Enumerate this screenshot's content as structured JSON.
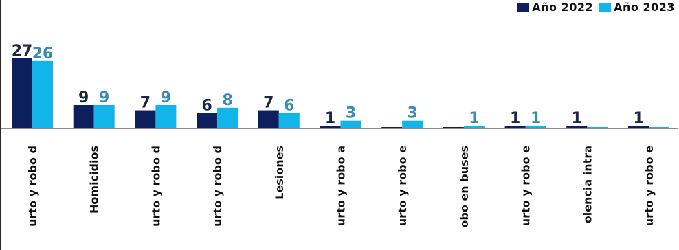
{
  "chart_data": {
    "type": "bar",
    "title": "",
    "xlabel": "",
    "ylabel": "",
    "ylim": [
      0,
      27
    ],
    "grid": false,
    "legend_position": "top-right",
    "categories": [
      "urto y robo d",
      "Homicidios",
      "urto y robo d",
      "urto y robo d",
      "Lesiones",
      "urto y robo a",
      "urto y robo e",
      "obo en buses",
      "urto y robo e",
      "olencia intra",
      "urto y robo e"
    ],
    "series": [
      {
        "name": "Año 2022",
        "color": "#0d1f5c",
        "label_color": "#1c2541",
        "values": [
          27,
          9,
          7,
          6,
          7,
          1,
          0,
          0,
          1,
          1,
          1
        ],
        "labels": [
          "27",
          "9",
          "7",
          "6",
          "7",
          "1",
          "",
          "",
          "1",
          "1",
          "1"
        ]
      },
      {
        "name": "Año 2023",
        "color": "#11b5ea",
        "label_color": "#3a8ab6",
        "values": [
          26,
          9,
          9,
          8,
          6,
          3,
          3,
          1,
          1,
          0,
          0
        ],
        "labels": [
          "26",
          "9",
          "9",
          "8",
          "6",
          "3",
          "3",
          "1",
          "1",
          "",
          ""
        ]
      }
    ]
  }
}
